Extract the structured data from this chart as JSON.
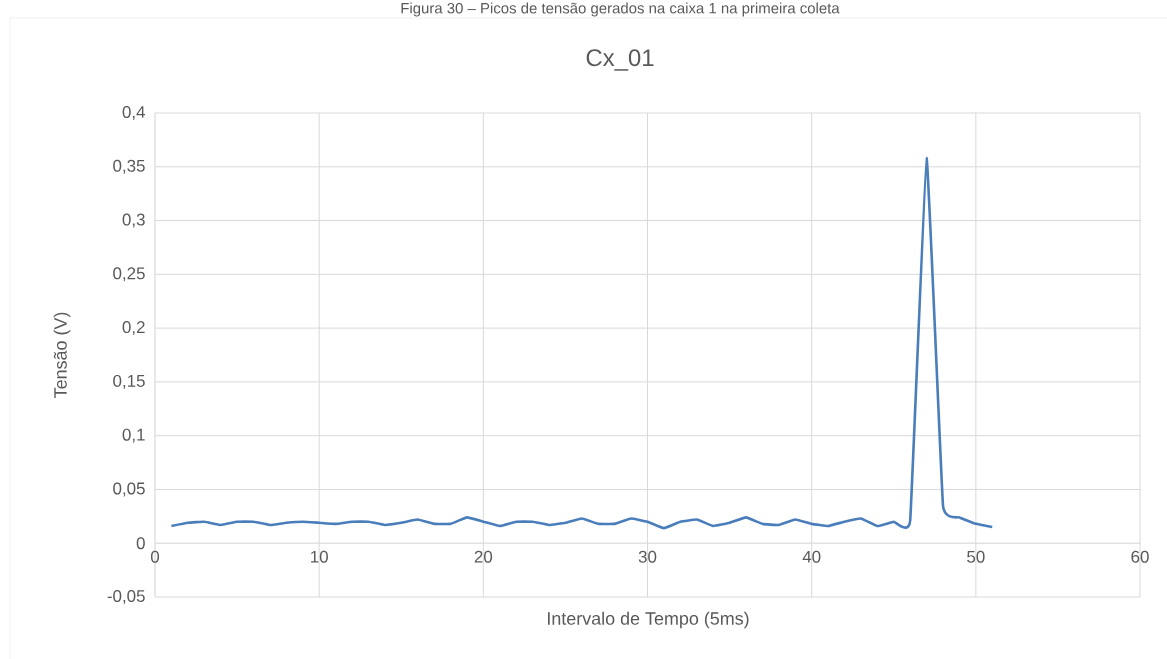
{
  "chart_data": {
    "type": "line",
    "title": "Cx_01",
    "xlabel": "Intervalo de Tempo (5ms)",
    "ylabel": "Tensão (V)",
    "annotations": [
      "Figura 30 – Picos de tensão gerados na caixa 1 na primeira coleta"
    ],
    "x": [
      1,
      2,
      3,
      4,
      5,
      6,
      7,
      8,
      9,
      10,
      11,
      12,
      13,
      14,
      15,
      16,
      17,
      18,
      19,
      20,
      21,
      22,
      23,
      24,
      25,
      26,
      27,
      28,
      29,
      30,
      31,
      32,
      33,
      34,
      35,
      36,
      37,
      38,
      39,
      40,
      41,
      42,
      43,
      44,
      45,
      46,
      47,
      48,
      49,
      50,
      51
    ],
    "series": [
      {
        "color": "#4a7ebb",
        "values": [
          0.016,
          0.019,
          0.02,
          0.017,
          0.02,
          0.02,
          0.017,
          0.019,
          0.02,
          0.019,
          0.018,
          0.02,
          0.02,
          0.017,
          0.019,
          0.022,
          0.018,
          0.018,
          0.024,
          0.02,
          0.016,
          0.02,
          0.02,
          0.017,
          0.019,
          0.023,
          0.018,
          0.018,
          0.023,
          0.02,
          0.014,
          0.02,
          0.022,
          0.016,
          0.019,
          0.024,
          0.018,
          0.017,
          0.022,
          0.018,
          0.016,
          0.02,
          0.023,
          0.016,
          0.02,
          0.021,
          0.358,
          0.035,
          0.024,
          0.018,
          0.015
        ]
      }
    ],
    "xlim": [
      0,
      60
    ],
    "xticks": [
      0,
      10,
      20,
      30,
      40,
      50,
      60
    ],
    "ylim": [
      -0.05,
      0.4
    ],
    "yticks": [
      {
        "value": -0.05,
        "label": "-0,05"
      },
      0,
      {
        "value": 0.05,
        "label": "0,05"
      },
      {
        "value": 0.1,
        "label": "0,1"
      },
      {
        "value": 0.15,
        "label": "0,15"
      },
      {
        "value": 0.2,
        "label": "0,2"
      },
      {
        "value": 0.25,
        "label": "0,25"
      },
      {
        "value": 0.3,
        "label": "0,3"
      },
      {
        "value": 0.35,
        "label": "0,35"
      },
      {
        "value": 0.4,
        "label": "0,4"
      }
    ],
    "grid": true,
    "legend": false,
    "marker": "none",
    "line_style": "solid"
  }
}
